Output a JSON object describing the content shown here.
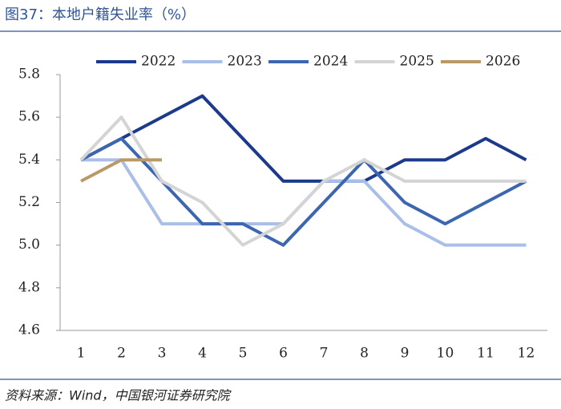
{
  "chart_data": {
    "type": "line",
    "title": "图37：本地户籍失业率（%）",
    "source": "资料来源：Wind，中国银河证券研究院",
    "categories": [
      "1",
      "2",
      "3",
      "4",
      "5",
      "6",
      "7",
      "8",
      "9",
      "10",
      "11",
      "12"
    ],
    "series": [
      {
        "name": "2022",
        "color": "#1b3a8c",
        "values": [
          5.4,
          5.5,
          5.6,
          5.7,
          5.5,
          5.3,
          5.3,
          5.3,
          5.4,
          5.4,
          5.5,
          5.4
        ]
      },
      {
        "name": "2023",
        "color": "#a9bfe8",
        "values": [
          5.4,
          5.4,
          5.1,
          5.1,
          5.1,
          5.1,
          5.3,
          5.3,
          5.1,
          5.0,
          5.0,
          5.0
        ]
      },
      {
        "name": "2024",
        "color": "#3d66b0",
        "values": [
          5.4,
          5.5,
          5.3,
          5.1,
          5.1,
          5.0,
          5.2,
          5.4,
          5.2,
          5.1,
          5.2,
          5.3
        ]
      },
      {
        "name": "2025",
        "color": "#d4d4d4",
        "values": [
          5.4,
          5.6,
          5.3,
          5.2,
          5.0,
          5.1,
          5.3,
          5.4,
          5.3,
          5.3,
          5.3,
          5.3
        ]
      },
      {
        "name": "2026",
        "color": "#b99a67",
        "values": [
          5.3,
          5.4,
          5.4,
          null,
          null,
          null,
          null,
          null,
          null,
          null,
          null,
          null
        ]
      }
    ],
    "ylim": [
      4.6,
      5.8
    ],
    "yticks": [
      4.6,
      4.8,
      {
        "value": 5,
        "label": "5.0"
      },
      5.2,
      5.4,
      5.6,
      5.8
    ],
    "legend": "top"
  }
}
